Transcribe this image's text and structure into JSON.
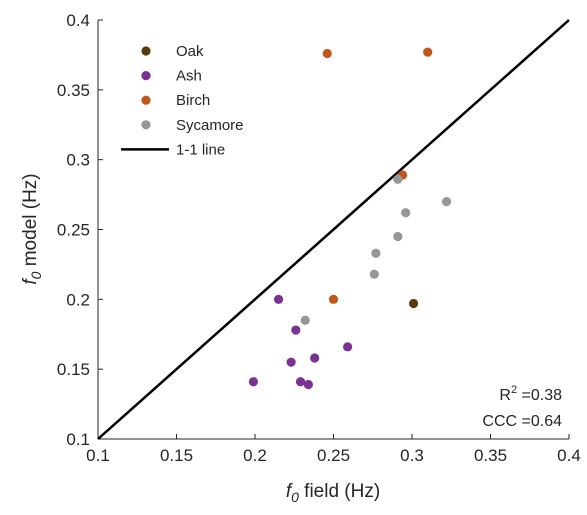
{
  "chart_data": {
    "type": "scatter",
    "xlabel": {
      "symbol": "f",
      "subscript": "0",
      "text": " field (Hz)"
    },
    "ylabel": {
      "symbol": "f",
      "subscript": "0",
      "text": " model (Hz)"
    },
    "xlim": [
      0.1,
      0.4
    ],
    "ylim": [
      0.1,
      0.4
    ],
    "xticks": [
      "0.1",
      "0.15",
      "0.2",
      "0.25",
      "0.3",
      "0.35",
      "0.4"
    ],
    "yticks": [
      "0.1",
      "0.15",
      "0.2",
      "0.25",
      "0.3",
      "0.35",
      "0.4"
    ],
    "grid": false,
    "legend_position": "top-left",
    "series": [
      {
        "name": "Oak",
        "color": "#5c3a10",
        "points": [
          [
            0.301,
            0.197
          ]
        ]
      },
      {
        "name": "Ash",
        "color": "#7b3294",
        "points": [
          [
            0.199,
            0.141
          ],
          [
            0.215,
            0.2
          ],
          [
            0.223,
            0.155
          ],
          [
            0.226,
            0.178
          ],
          [
            0.229,
            0.141
          ],
          [
            0.234,
            0.139
          ],
          [
            0.238,
            0.158
          ],
          [
            0.259,
            0.166
          ]
        ]
      },
      {
        "name": "Birch",
        "color": "#c1561a",
        "points": [
          [
            0.246,
            0.376
          ],
          [
            0.25,
            0.2
          ],
          [
            0.294,
            0.289
          ],
          [
            0.31,
            0.377
          ]
        ]
      },
      {
        "name": "Sycamore",
        "color": "#969696",
        "points": [
          [
            0.232,
            0.185
          ],
          [
            0.276,
            0.218
          ],
          [
            0.277,
            0.233
          ],
          [
            0.291,
            0.245
          ],
          [
            0.291,
            0.286
          ],
          [
            0.296,
            0.262
          ],
          [
            0.322,
            0.27
          ]
        ]
      }
    ],
    "reference_line": {
      "name": "1-1 line",
      "color": "#000000",
      "points": [
        [
          0.1,
          0.1
        ],
        [
          0.4,
          0.4
        ]
      ]
    },
    "stats": {
      "r2_label": "R",
      "r2_sup": "2",
      "r2_value": " =0.38",
      "ccc": "CCC =0.64"
    }
  }
}
